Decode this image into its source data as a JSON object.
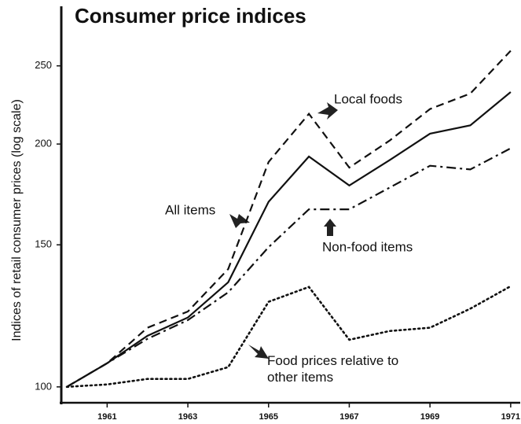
{
  "chart_data": {
    "type": "line",
    "title": "Consumer price indices",
    "y_label": "Indices of retail consumer prices (log scale)",
    "yscale": "log",
    "x": [
      1960,
      1961,
      1962,
      1963,
      1964,
      1965,
      1966,
      1967,
      1968,
      1969,
      1970,
      1971
    ],
    "xlim": [
      1960,
      1971.1
    ],
    "xticks": [
      1961,
      1963,
      1965,
      1967,
      1969,
      1971
    ],
    "ylim": [
      96,
      295
    ],
    "yticks": [
      100,
      150,
      200,
      250
    ],
    "series": [
      {
        "name": "Local foods",
        "color": "#111111",
        "line_style": "dashed",
        "values": [
          100,
          107,
          118.4,
          124,
          140,
          190,
          218,
          187,
          202,
          221,
          231,
          261
        ]
      },
      {
        "name": "All items",
        "color": "#111111",
        "line_style": "solid",
        "values": [
          100,
          107,
          115.7,
          121.9,
          134.8,
          169.6,
          193,
          177.7,
          191,
          206,
          211,
          232
        ]
      },
      {
        "name": "Non-food items",
        "color": "#111111",
        "line_style": "dashdot",
        "values": [
          100,
          107,
          114.7,
          121,
          131,
          149,
          166,
          166,
          176.6,
          188,
          186,
          197.6
        ]
      },
      {
        "name": "Food prices relative to other items",
        "color": "#111111",
        "line_style": "dotted",
        "values": [
          100,
          100.7,
          102.3,
          102.3,
          105.8,
          127.5,
          133,
          114.4,
          117.3,
          118.4,
          125,
          133.3
        ]
      }
    ]
  }
}
